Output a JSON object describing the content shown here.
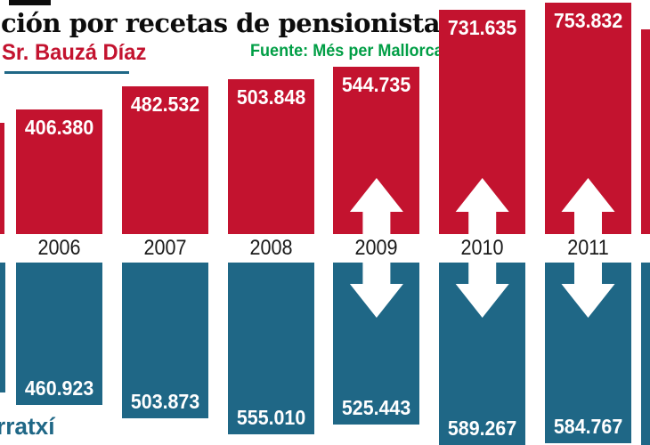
{
  "header": {
    "title": "ción por recetas de pensionistas",
    "series_top_label": "Sr. Bauzá Díaz",
    "source_label": "Fuente: Més per Mallorca",
    "series_bottom_label": "rratxí"
  },
  "colors": {
    "red": "#c3132f",
    "teal": "#1f6786",
    "green": "#009e45",
    "black": "#0d0d0d",
    "white": "#ffffff"
  },
  "chart_data": {
    "type": "bar",
    "orientation": "mirrored-vertical",
    "categories": [
      "2006",
      "2007",
      "2008",
      "2009",
      "2010",
      "2011"
    ],
    "series": [
      {
        "name": "Sr. Bauzá Díaz",
        "color": "#c3132f",
        "direction": "up",
        "values": [
          406380,
          482532,
          503848,
          544735,
          731635,
          753832
        ],
        "labels": [
          "406.380",
          "482.532",
          "503.848",
          "544.735",
          "731.635",
          "753.832"
        ]
      },
      {
        "name": "rratxí",
        "color": "#1f6786",
        "direction": "down",
        "values": [
          460923,
          503873,
          555010,
          525443,
          589267,
          584767
        ],
        "labels": [
          "460.923",
          "503.873",
          "555.010",
          "525.443",
          "589.267",
          "584.767"
        ]
      }
    ],
    "arrows_on": [
      "2009",
      "2010",
      "2011"
    ],
    "notes": "extra unlabeled bars cropped at the left and right image edges"
  }
}
